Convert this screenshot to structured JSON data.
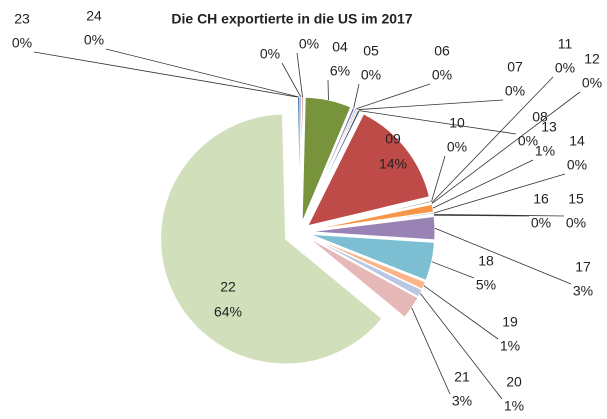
{
  "chart_data": {
    "type": "pie",
    "title": "Die CH exportierte  in die US im 2017",
    "categories": [
      null,
      null,
      "04",
      "05",
      "06",
      "07",
      "08",
      "09",
      "10",
      "11",
      "12",
      "13",
      "14",
      "15",
      "16",
      "17",
      "18",
      "19",
      "20",
      "21",
      "22",
      "23",
      "24"
    ],
    "values": [
      0.2,
      0.2,
      6,
      0.3,
      0.2,
      0.2,
      0.3,
      14,
      0.2,
      0.1,
      0.1,
      1,
      0.2,
      0.1,
      0.1,
      3,
      5,
      1,
      1,
      3,
      64,
      0.1,
      0.3
    ],
    "value_labels": [
      "0%",
      "0%",
      "6%",
      "0%",
      "0%",
      "0%",
      "0%",
      "14%",
      "0%",
      "0%",
      "0%",
      "1%",
      "0%",
      "0%",
      "0%",
      "3%",
      "5%",
      "1%",
      "1%",
      "3%",
      "64%",
      "0%",
      "0%"
    ],
    "colors": [
      "#4f81bd",
      "#c0504d",
      "#77933c",
      "#8064a2",
      "#4bacc6",
      "#f79646",
      "#2c4d75",
      "#be4b48",
      "#4f6228",
      "#604a7b",
      "#31859c",
      "#f79646",
      "#95b3d7",
      "#d99694",
      "#c3d69b",
      "#9983b5",
      "#7cbfd2",
      "#fab58a",
      "#b9c7e3",
      "#e6b9b8",
      "#d2dfbb",
      "#4f81bd",
      "#3c6aa8"
    ]
  }
}
